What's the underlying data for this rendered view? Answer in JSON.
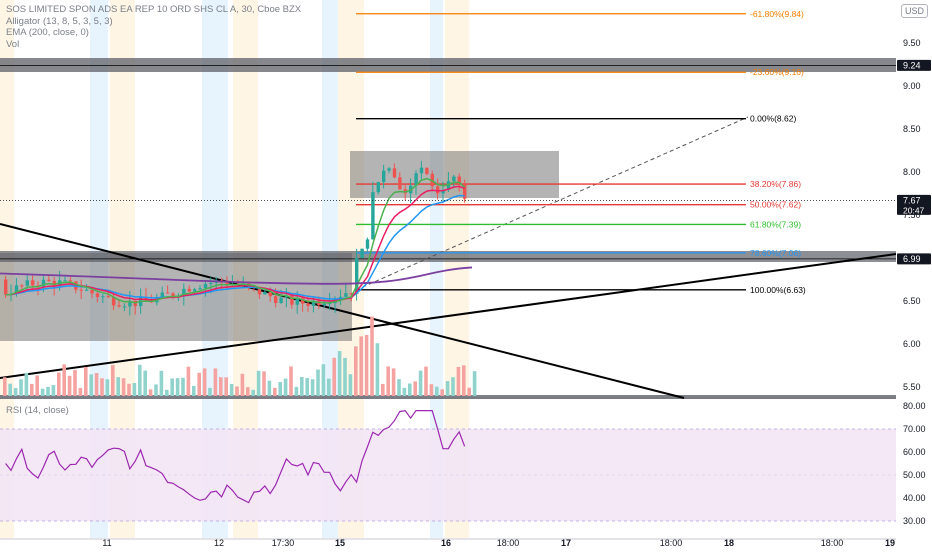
{
  "legend": {
    "symbol": "SOS LIMITED SPON ADS EA REP 10 ORD SHS CL A, 30, Cboe BZX",
    "alligator": "Alligator (13, 8, 5, 3, 5, 3)",
    "ema": "EMA (200, close, 0)",
    "vol": "Vol",
    "rsi": "RSI (14, close)"
  },
  "currency": "USD",
  "price_axis": {
    "ticks": [
      "9.50",
      "9.00",
      "8.50",
      "8.00",
      "7.50",
      "7.00",
      "6.50",
      "6.00",
      "5.50"
    ],
    "badges": [
      {
        "label": "9.24",
        "price": 9.24,
        "color": "#131722"
      },
      {
        "label": "7.67",
        "sub": "20:47",
        "price": 7.67,
        "color": "#131722"
      },
      {
        "label": "6.99",
        "price": 6.99,
        "color": "#131722"
      }
    ]
  },
  "rsi_axis": {
    "ticks": [
      "80.00",
      "70.00",
      "60.00",
      "50.00",
      "40.00",
      "30.00"
    ]
  },
  "time_axis": {
    "labels": [
      "11",
      "12",
      "17:30",
      "15",
      "16",
      "18:00",
      "17",
      "18:00",
      "18",
      "18:00",
      "19"
    ]
  },
  "fib_levels": [
    {
      "label": "-61.80%(9.84)",
      "price": 9.84,
      "color": "#f57c00"
    },
    {
      "label": "-23.60%(9.16)",
      "price": 9.16,
      "color": "#f57c00"
    },
    {
      "label": "0.00%(8.62)",
      "price": 8.62,
      "color": "#000000"
    },
    {
      "label": "38.20%(7.86)",
      "price": 7.86,
      "color": "#e53935"
    },
    {
      "label": "50.00%(7.62)",
      "price": 7.62,
      "color": "#e53935"
    },
    {
      "label": "61.80%(7.39)",
      "price": 7.39,
      "color": "#2ebd2e"
    },
    {
      "label": "78.60%(7.06)",
      "price": 7.06,
      "color": "#2196f3"
    },
    {
      "label": "100.00%(6.63)",
      "price": 6.63,
      "color": "#000000"
    }
  ],
  "colors": {
    "up": "#26a69a",
    "down": "#ef5350",
    "up_vol": "#8fd3cc",
    "down_vol": "#f5a3a1",
    "rsi_line": "#9c27b0",
    "rsi_band": "#f3e5f5",
    "session_blue": "#e3f2fd",
    "session_orange": "#fff3e0",
    "box": "#777777",
    "alligator_blue": "#2196f3",
    "alligator_red": "#e91e63",
    "alligator_green": "#4caf50",
    "ema": "#7b3fa0"
  }
}
